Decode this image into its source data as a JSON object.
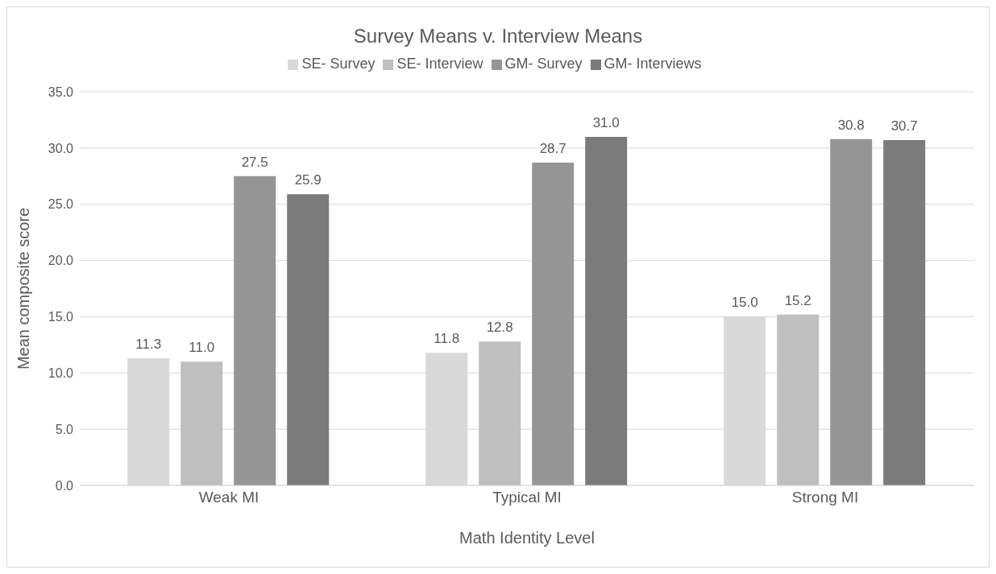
{
  "chart_data": {
    "type": "bar",
    "title": "Survey Means v. Interview Means",
    "xlabel": "Math Identity Level",
    "ylabel": "Mean composite score",
    "categories": [
      "Weak MI",
      "Typical MI",
      "Strong MI"
    ],
    "series": [
      {
        "name": "SE- Survey",
        "color": "#d9d9d9",
        "values": [
          11.3,
          11.8,
          15.0
        ],
        "value_labels": [
          "11.3",
          "11.8",
          "15.0"
        ]
      },
      {
        "name": "SE- Interview",
        "color": "#bfbfbf",
        "values": [
          11.0,
          12.8,
          15.2
        ],
        "value_labels": [
          "11.0",
          "12.8",
          "15.2"
        ]
      },
      {
        "name": "GM- Survey",
        "color": "#959595",
        "values": [
          27.5,
          28.7,
          30.8
        ],
        "value_labels": [
          "27.5",
          "28.7",
          "30.8"
        ]
      },
      {
        "name": "GM- Interviews",
        "color": "#7b7b7b",
        "values": [
          25.9,
          31.0,
          30.7
        ],
        "value_labels": [
          "25.9",
          "31.0",
          "30.7"
        ]
      }
    ],
    "ylim": [
      0,
      35
    ],
    "yticks": [
      {
        "value": 0,
        "label": "0.0"
      },
      {
        "value": 5,
        "label": "5.0"
      },
      {
        "value": 10,
        "label": "10.0"
      },
      {
        "value": 15,
        "label": "15.0"
      },
      {
        "value": 20,
        "label": "20.0"
      },
      {
        "value": 25,
        "label": "25.0"
      },
      {
        "value": 30,
        "label": "30.0"
      },
      {
        "value": 35,
        "label": "35.0"
      }
    ],
    "grid": "y",
    "legend": "top"
  }
}
